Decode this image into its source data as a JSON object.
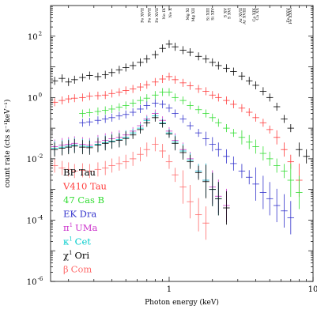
{
  "chart_data": {
    "type": "scatter",
    "xlabel": "Photon energy (keV)",
    "ylabel": "count rate (cts s⁻¹keV⁻¹)",
    "x_scale": "log",
    "y_scale": "log",
    "xlim": [
      0.15,
      10
    ],
    "ylim": [
      1e-06,
      1000
    ],
    "x_ticks": [
      {
        "value": 1,
        "label": "1"
      },
      {
        "value": 10,
        "label": "10"
      }
    ],
    "y_ticks": [
      {
        "value": 100,
        "base": "10",
        "exp": "2"
      },
      {
        "value": 1,
        "base": "10",
        "exp": "0"
      },
      {
        "value": 0.01,
        "base": "10",
        "exp": "-2"
      },
      {
        "value": 0.0001,
        "base": "10",
        "exp": "-4"
      },
      {
        "value": 1e-06,
        "base": "10",
        "exp": "-6"
      }
    ],
    "ion_labels": [
      {
        "energy": 0.65,
        "text": "Fe XVII"
      },
      {
        "energy": 0.73,
        "text": "Fe XVII"
      },
      {
        "energy": 0.82,
        "text": "Fe XVII"
      },
      {
        "energy": 0.92,
        "text": "Ne IX"
      },
      {
        "energy": 1.02,
        "text": "Ne X"
      },
      {
        "energy": 1.35,
        "text": "Mg XI"
      },
      {
        "energy": 1.47,
        "text": "Mg XII"
      },
      {
        "energy": 1.86,
        "text": "Si XIII"
      },
      {
        "energy": 2.0,
        "text": "Si XIV"
      },
      {
        "energy": 2.46,
        "text": "S XV"
      },
      {
        "energy": 2.62,
        "text": "S XVI"
      },
      {
        "energy": 3.14,
        "text": "Ar XVII"
      },
      {
        "energy": 3.32,
        "text": "Ar XVIII"
      },
      {
        "energy": 3.9,
        "text": "Ca XIX"
      },
      {
        "energy": 4.1,
        "text": "Ca XX"
      },
      {
        "energy": 6.7,
        "text": "Fe XXV"
      },
      {
        "energy": 6.97,
        "text": "Fe XXVI"
      }
    ],
    "series": [
      {
        "name": "BP Tau",
        "color": "#000000",
        "legend_prefix": "",
        "legend_suffix": "BP Tau",
        "x": [
          0.16,
          0.18,
          0.2,
          0.22,
          0.25,
          0.28,
          0.32,
          0.36,
          0.4,
          0.45,
          0.5,
          0.56,
          0.63,
          0.7,
          0.8,
          0.9,
          1.0,
          1.1,
          1.25,
          1.4,
          1.6,
          1.8,
          2.0,
          2.2,
          2.5,
          2.8,
          3.2,
          3.6,
          4.0,
          4.5,
          5.0,
          5.6,
          6.3,
          7.0,
          8.0,
          9.0
        ],
        "y": [
          3.5,
          4.2,
          3.2,
          3.8,
          4.5,
          5.2,
          4.8,
          5.5,
          6.5,
          8,
          9.5,
          11,
          14,
          18,
          25,
          40,
          55,
          45,
          35,
          30,
          22,
          18,
          14,
          11,
          9,
          7,
          5,
          3.5,
          2.5,
          1.6,
          1.0,
          0.5,
          0.2,
          0.1,
          0.02,
          0.012
        ]
      },
      {
        "name": "V410 Tau",
        "color": "#ff3b3b",
        "legend_prefix": "",
        "legend_suffix": "V410 Tau",
        "x": [
          0.16,
          0.18,
          0.2,
          0.22,
          0.25,
          0.28,
          0.32,
          0.36,
          0.4,
          0.45,
          0.5,
          0.56,
          0.63,
          0.7,
          0.8,
          0.9,
          1.0,
          1.1,
          1.25,
          1.4,
          1.6,
          1.8,
          2.0,
          2.2,
          2.5,
          2.8,
          3.2,
          3.6,
          4.0,
          4.5,
          5.0,
          5.6,
          6.3,
          7.0,
          8.0
        ],
        "y": [
          0.7,
          0.8,
          0.9,
          0.95,
          1.0,
          1.1,
          1.15,
          1.2,
          1.35,
          1.5,
          1.7,
          1.9,
          2.2,
          2.6,
          3.2,
          4.0,
          4.8,
          3.8,
          3.0,
          2.4,
          1.9,
          1.6,
          1.2,
          1.0,
          0.8,
          0.6,
          0.45,
          0.33,
          0.22,
          0.15,
          0.09,
          0.05,
          0.02,
          0.008,
          0.002
        ]
      },
      {
        "name": "47 Cas B",
        "color": "#33dd33",
        "legend_prefix": "",
        "legend_suffix": "47 Cas B",
        "x": [
          0.25,
          0.28,
          0.32,
          0.36,
          0.4,
          0.45,
          0.5,
          0.56,
          0.63,
          0.7,
          0.8,
          0.9,
          1.0,
          1.1,
          1.25,
          1.4,
          1.6,
          1.8,
          2.0,
          2.2,
          2.5,
          2.8,
          3.2,
          3.6,
          4.0,
          4.5,
          5.0,
          5.6,
          6.3,
          7.0,
          8.0
        ],
        "y": [
          0.3,
          0.32,
          0.35,
          0.38,
          0.42,
          0.48,
          0.55,
          0.65,
          0.8,
          0.95,
          1.2,
          1.5,
          1.5,
          1.0,
          0.8,
          0.55,
          0.4,
          0.3,
          0.22,
          0.15,
          0.1,
          0.07,
          0.05,
          0.035,
          0.025,
          0.015,
          0.01,
          0.006,
          0.004,
          0.002,
          0.0008
        ]
      },
      {
        "name": "EK Dra",
        "color": "#3333cc",
        "legend_prefix": "",
        "legend_suffix": "EK Dra",
        "x": [
          0.25,
          0.28,
          0.32,
          0.36,
          0.4,
          0.45,
          0.5,
          0.56,
          0.63,
          0.7,
          0.8,
          0.9,
          1.0,
          1.1,
          1.25,
          1.4,
          1.6,
          1.8,
          2.0,
          2.2,
          2.5,
          2.8,
          3.2,
          3.6,
          4.0,
          4.5,
          5.0,
          5.6,
          6.3,
          7.0
        ],
        "y": [
          0.15,
          0.16,
          0.18,
          0.2,
          0.22,
          0.25,
          0.28,
          0.33,
          0.42,
          0.55,
          0.65,
          0.6,
          0.45,
          0.3,
          0.2,
          0.12,
          0.07,
          0.045,
          0.03,
          0.02,
          0.012,
          0.007,
          0.004,
          0.0025,
          0.0015,
          0.0008,
          0.0005,
          0.0003,
          0.0002,
          0.00012
        ]
      },
      {
        "name": "π¹ UMa",
        "color": "#cc33cc",
        "legend_prefix": "π",
        "legend_sup": "1",
        "legend_suffix": "UMa",
        "x": [
          0.16,
          0.18,
          0.2,
          0.22,
          0.25,
          0.28,
          0.32,
          0.36,
          0.4,
          0.45,
          0.5,
          0.56,
          0.63,
          0.7,
          0.8,
          0.9,
          1.0,
          1.1,
          1.25,
          1.4,
          1.6,
          1.8,
          2.0,
          2.2,
          2.5
        ],
        "y": [
          0.025,
          0.028,
          0.03,
          0.032,
          0.03,
          0.028,
          0.035,
          0.04,
          0.045,
          0.05,
          0.06,
          0.08,
          0.12,
          0.2,
          0.3,
          0.18,
          0.08,
          0.04,
          0.02,
          0.01,
          0.004,
          0.002,
          0.0012,
          0.0006,
          0.0003
        ]
      },
      {
        "name": "κ¹ Cet",
        "color": "#00cccc",
        "legend_prefix": "κ",
        "legend_sup": "1",
        "legend_suffix": "Cet",
        "x": [
          0.16,
          0.18,
          0.2,
          0.22,
          0.25,
          0.28,
          0.32,
          0.36,
          0.4,
          0.45,
          0.5,
          0.56,
          0.63,
          0.7,
          0.8,
          0.9,
          1.0,
          1.1,
          1.25,
          1.4,
          1.6,
          1.8,
          2.0,
          2.2
        ],
        "y": [
          0.022,
          0.024,
          0.026,
          0.028,
          0.026,
          0.025,
          0.03,
          0.034,
          0.038,
          0.042,
          0.05,
          0.07,
          0.1,
          0.18,
          0.25,
          0.15,
          0.07,
          0.035,
          0.018,
          0.009,
          0.004,
          0.002,
          0.001,
          0.0005
        ]
      },
      {
        "name": "χ¹ Ori",
        "color": "#000000",
        "legend_prefix": "χ",
        "legend_sup": "1",
        "legend_suffix": "Ori",
        "x": [
          0.16,
          0.18,
          0.2,
          0.22,
          0.25,
          0.28,
          0.32,
          0.36,
          0.4,
          0.45,
          0.5,
          0.56,
          0.63,
          0.7,
          0.8,
          0.9,
          1.0,
          1.1,
          1.25,
          1.4,
          1.6,
          1.8,
          2.0,
          2.2,
          2.5
        ],
        "y": [
          0.02,
          0.022,
          0.024,
          0.026,
          0.024,
          0.023,
          0.028,
          0.032,
          0.036,
          0.04,
          0.046,
          0.06,
          0.09,
          0.15,
          0.22,
          0.14,
          0.065,
          0.032,
          0.016,
          0.008,
          0.0035,
          0.0018,
          0.001,
          0.0005,
          0.00025
        ]
      },
      {
        "name": "β Com",
        "color": "#ff6b6b",
        "legend_prefix": "β",
        "legend_sup": "",
        "legend_suffix": "Com",
        "x": [
          0.16,
          0.18,
          0.2,
          0.22,
          0.25,
          0.28,
          0.32,
          0.36,
          0.4,
          0.45,
          0.5,
          0.56,
          0.63,
          0.7,
          0.8,
          0.9,
          1.0,
          1.1,
          1.25,
          1.4,
          1.6,
          1.8
        ],
        "y": [
          0.006,
          0.005,
          0.0045,
          0.004,
          0.0042,
          0.004,
          0.0045,
          0.005,
          0.006,
          0.007,
          0.008,
          0.01,
          0.014,
          0.02,
          0.03,
          0.018,
          0.008,
          0.003,
          0.0012,
          0.0004,
          0.00015,
          8e-05
        ]
      }
    ]
  }
}
